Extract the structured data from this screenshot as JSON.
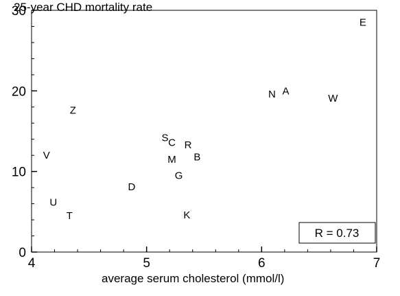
{
  "chart_data": {
    "type": "scatter",
    "title": "25-year CHD mortality rate",
    "xlabel": "average serum cholesterol (mmol/l)",
    "ylabel": "",
    "xlim": [
      4,
      7
    ],
    "ylim": [
      0,
      30
    ],
    "xticks": [
      4,
      5,
      6,
      7
    ],
    "yticks": [
      0,
      10,
      20,
      30
    ],
    "grid": false,
    "legend": "none",
    "marker_style": "letter",
    "points": [
      {
        "label": "E",
        "x": 6.88,
        "y": 28.5
      },
      {
        "label": "A",
        "x": 6.21,
        "y": 20.0
      },
      {
        "label": "N",
        "x": 6.09,
        "y": 19.6
      },
      {
        "label": "W",
        "x": 6.62,
        "y": 19.1
      },
      {
        "label": "Z",
        "x": 4.36,
        "y": 17.6
      },
      {
        "label": "S",
        "x": 5.16,
        "y": 14.2
      },
      {
        "label": "C",
        "x": 5.22,
        "y": 13.6
      },
      {
        "label": "R",
        "x": 5.36,
        "y": 13.3
      },
      {
        "label": "V",
        "x": 4.13,
        "y": 12.0
      },
      {
        "label": "B",
        "x": 5.44,
        "y": 11.8
      },
      {
        "label": "M",
        "x": 5.22,
        "y": 11.5
      },
      {
        "label": "G",
        "x": 5.28,
        "y": 9.5
      },
      {
        "label": "D",
        "x": 4.87,
        "y": 8.1
      },
      {
        "label": "U",
        "x": 4.19,
        "y": 6.2
      },
      {
        "label": "T",
        "x": 4.33,
        "y": 4.5
      },
      {
        "label": "K",
        "x": 5.35,
        "y": 4.6
      }
    ],
    "annotation": {
      "text": "R = 0.73",
      "position": "bottom-right"
    }
  }
}
